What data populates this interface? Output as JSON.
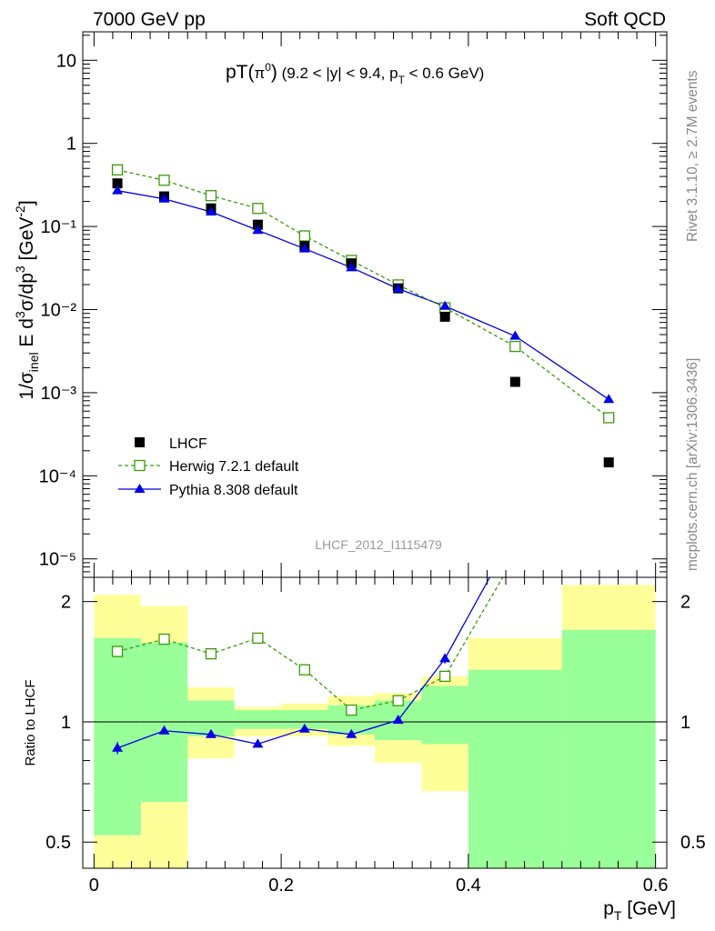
{
  "header": {
    "left": "7000 GeV pp",
    "right": "Soft QCD"
  },
  "side_text": {
    "top": "Rivet 3.1.10, ≥ 2.7M events",
    "bottom": "mcplots.cern.ch [arXiv:1306.3436]"
  },
  "watermark": "LHCF_2012_I1115479",
  "colors": {
    "data": "#000000",
    "herwig": "#3a9a0a",
    "pythia": "#0000e6",
    "band_inner": "#99ff99",
    "band_outer": "#ffff99"
  },
  "chart_data": [
    {
      "type": "scatter",
      "title": "pT(π⁰) (9.2 < |y| < 9.4, pT < 0.6 GeV)",
      "ylabel": "1/σinel E d³σ/dp³ [GeV⁻²]",
      "yscale": "log",
      "ylim": [
        6e-06,
        22
      ],
      "xlim": [
        -0.012,
        0.612
      ],
      "y_ticks": [
        "10",
        "1",
        "10⁻¹",
        "10⁻²",
        "10⁻³",
        "10⁻⁴",
        "10⁻⁵"
      ],
      "legend_position": "bottom-left",
      "series": [
        {
          "name": "LHCF",
          "style": "markers",
          "x": [
            0.025,
            0.075,
            0.125,
            0.175,
            0.225,
            0.275,
            0.325,
            0.375,
            0.45,
            0.55
          ],
          "y": [
            0.33,
            0.23,
            0.165,
            0.105,
            0.058,
            0.036,
            0.018,
            0.0082,
            0.00135,
            0.000145
          ]
        },
        {
          "name": "Herwig 7.2.1 default",
          "style": "dashed-open-squares",
          "x": [
            0.025,
            0.075,
            0.125,
            0.175,
            0.225,
            0.275,
            0.325,
            0.375,
            0.45,
            0.55
          ],
          "y": [
            0.48,
            0.36,
            0.235,
            0.165,
            0.077,
            0.039,
            0.0198,
            0.0105,
            0.0036,
            0.0005
          ]
        },
        {
          "name": "Pythia 8.308 default",
          "style": "solid-triangles",
          "x": [
            0.025,
            0.075,
            0.125,
            0.175,
            0.225,
            0.275,
            0.325,
            0.375,
            0.45,
            0.55
          ],
          "y": [
            0.27,
            0.215,
            0.15,
            0.09,
            0.054,
            0.032,
            0.0178,
            0.011,
            0.0048,
            0.00083
          ]
        }
      ]
    },
    {
      "type": "line",
      "xlabel": "pT [GeV]",
      "ylabel": "Ratio to LHCF",
      "yscale": "log",
      "ylim": [
        0.43,
        2.3
      ],
      "xlim": [
        -0.012,
        0.612
      ],
      "x_ticks": [
        "0",
        "0.2",
        "0.4",
        "0.6"
      ],
      "y_ticks": [
        "2",
        "1",
        "0.5"
      ],
      "bins": [
        [
          0,
          0.05
        ],
        [
          0.05,
          0.1
        ],
        [
          0.1,
          0.15
        ],
        [
          0.15,
          0.2
        ],
        [
          0.2,
          0.25
        ],
        [
          0.25,
          0.3
        ],
        [
          0.3,
          0.35
        ],
        [
          0.35,
          0.4
        ],
        [
          0.4,
          0.5
        ],
        [
          0.5,
          0.6
        ]
      ],
      "stat_band": {
        "lo": [
          0.52,
          0.63,
          0.92,
          0.96,
          0.96,
          0.93,
          0.9,
          0.88,
          0.43,
          0.43
        ],
        "hi": [
          1.62,
          1.58,
          1.13,
          1.07,
          1.07,
          1.1,
          1.13,
          1.23,
          1.35,
          1.7
        ]
      },
      "syst_band": {
        "lo": [
          0.43,
          0.43,
          0.81,
          0.92,
          0.92,
          0.87,
          0.79,
          0.67,
          0.43,
          0.43
        ],
        "hi": [
          2.08,
          1.95,
          1.22,
          1.09,
          1.11,
          1.16,
          1.18,
          1.3,
          1.62,
          2.2
        ]
      },
      "series": [
        {
          "name": "Herwig 7.2.1 default",
          "x": [
            0.025,
            0.075,
            0.125,
            0.175,
            0.225,
            0.275,
            0.325,
            0.375,
            0.45
          ],
          "y": [
            1.5,
            1.61,
            1.48,
            1.62,
            1.35,
            1.07,
            1.13,
            1.3,
            2.6
          ]
        },
        {
          "name": "Pythia 8.308 default",
          "x": [
            0.025,
            0.075,
            0.125,
            0.175,
            0.225,
            0.275,
            0.325,
            0.375,
            0.45
          ],
          "y": [
            0.86,
            0.95,
            0.93,
            0.88,
            0.96,
            0.93,
            1.01,
            1.44,
            3.0
          ],
          "yerr": [
            0.03,
            0.015,
            0.015,
            0.01,
            0.012,
            0.012,
            0.02,
            0.04,
            0
          ]
        }
      ]
    }
  ]
}
